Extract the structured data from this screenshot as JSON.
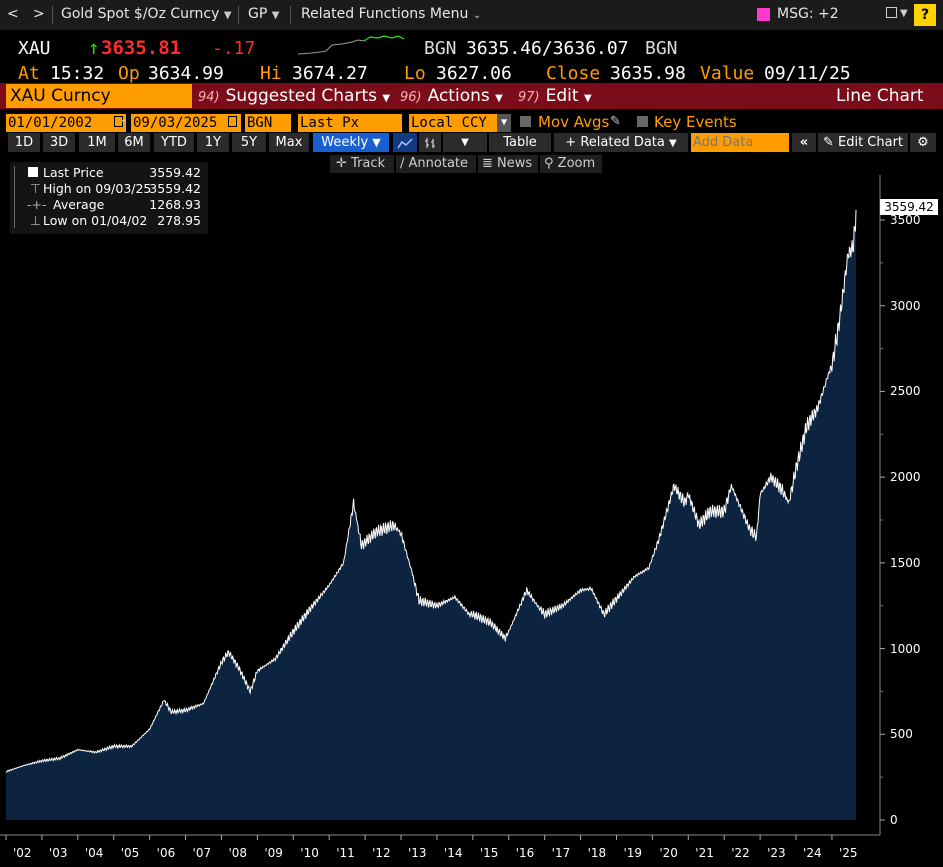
{
  "topbar": {
    "back_glyph": "<",
    "forward_glyph": ">",
    "security_name": "Gold Spot $/Oz Curncy",
    "function_code": "GP",
    "related_menu": "Related Functions Menu",
    "msg_label": "MSG: +2",
    "help_glyph": "?"
  },
  "quote": {
    "ticker": "XAU",
    "arrow": "↑",
    "last": "3635.81",
    "change": "-.17",
    "bid_src": "BGN",
    "bid_ask": "3635.46/3636.07",
    "ask_src": "BGN",
    "at_label": "At",
    "time": "15:32",
    "op_label": "Op",
    "open": "3634.99",
    "hi_label": "Hi",
    "high": "3674.27",
    "lo_label": "Lo",
    "low": "3627.06",
    "close_label": "Close",
    "close": "3635.98",
    "value_label": "Value",
    "value_date": "09/11/25"
  },
  "fnbar": {
    "security": "XAU Curncy",
    "suggested_num": "94)",
    "suggested": "Suggested Charts",
    "actions_num": "96)",
    "actions": "Actions",
    "edit_num": "97)",
    "edit": "Edit",
    "chart_type": "Line Chart"
  },
  "settings": {
    "start_date": "01/01/2002",
    "dash": "-",
    "end_date": "09/03/2025",
    "source": "BGN",
    "field": "Last Px",
    "currency": "Local CCY",
    "mov_avgs": "Mov Avgs",
    "key_events": "Key Events"
  },
  "periods": [
    "1D",
    "3D",
    "1M",
    "6M",
    "YTD",
    "1Y",
    "5Y",
    "Max"
  ],
  "frequency": "Weekly",
  "toolbar": {
    "table": "Table",
    "related_data": "Related Data",
    "add_data_placeholder": "Add Data",
    "edit_chart": "Edit Chart",
    "track": "Track",
    "annotate": "Annotate",
    "news": "News",
    "zoom": "Zoom"
  },
  "legend": {
    "last_label": "Last Price",
    "last_value": "3559.42",
    "high_label": "High on 09/03/25",
    "high_value": "3559.42",
    "avg_label": "Average",
    "avg_value": "1268.93",
    "low_label": "Low on 01/04/02",
    "low_value": "278.95"
  },
  "colors": {
    "amber": "#ff9d00",
    "up_green": "#22e000",
    "down_red": "#ff2a2a",
    "fn_bar": "#7b0d1a",
    "area_fill": "#0d2440",
    "line": "#ffffff"
  },
  "chart_data": {
    "type": "area",
    "title": "Gold Spot $/Oz Curncy",
    "frequency": "Weekly",
    "xlabel": "",
    "ylabel": "",
    "ylim": [
      0,
      3800
    ],
    "y_ticks": [
      0,
      500,
      1000,
      1500,
      2000,
      2500,
      3000,
      3500
    ],
    "x_tick_labels": [
      "'02",
      "'03",
      "'04",
      "'05",
      "'06",
      "'07",
      "'08",
      "'09",
      "'10",
      "'11",
      "'12",
      "'13",
      "'14",
      "'15",
      "'16",
      "'17",
      "'18",
      "'19",
      "'20",
      "'21",
      "'22",
      "'23",
      "'24",
      "'25"
    ],
    "last_value_label": "3559.42",
    "series": [
      {
        "name": "Last Price",
        "x": [
          2002.0,
          2002.5,
          2003.0,
          2003.5,
          2004.0,
          2004.5,
          2005.0,
          2005.5,
          2006.0,
          2006.4,
          2006.6,
          2007.0,
          2007.5,
          2008.0,
          2008.2,
          2008.5,
          2008.8,
          2009.0,
          2009.5,
          2010.0,
          2010.5,
          2011.0,
          2011.4,
          2011.68,
          2011.9,
          2012.3,
          2012.8,
          2013.0,
          2013.3,
          2013.5,
          2014.0,
          2014.5,
          2014.9,
          2015.0,
          2015.5,
          2015.9,
          2016.0,
          2016.5,
          2016.8,
          2017.0,
          2017.5,
          2018.0,
          2018.3,
          2018.65,
          2019.0,
          2019.5,
          2019.9,
          2020.2,
          2020.6,
          2020.9,
          2021.0,
          2021.3,
          2021.6,
          2022.0,
          2022.2,
          2022.7,
          2022.9,
          2023.0,
          2023.3,
          2023.6,
          2023.8,
          2024.0,
          2024.3,
          2024.6,
          2024.9,
          2025.0,
          2025.2,
          2025.45,
          2025.6,
          2025.67
        ],
        "values": [
          282,
          318,
          345,
          360,
          410,
          395,
          430,
          430,
          530,
          700,
          630,
          640,
          680,
          920,
          980,
          880,
          750,
          870,
          940,
          1100,
          1240,
          1370,
          1500,
          1850,
          1600,
          1680,
          1720,
          1670,
          1450,
          1280,
          1250,
          1300,
          1200,
          1200,
          1150,
          1060,
          1100,
          1340,
          1250,
          1200,
          1250,
          1340,
          1350,
          1200,
          1290,
          1420,
          1470,
          1650,
          1950,
          1850,
          1900,
          1720,
          1800,
          1800,
          1950,
          1700,
          1650,
          1900,
          2000,
          1930,
          1850,
          2050,
          2300,
          2400,
          2600,
          2650,
          2900,
          3300,
          3350,
          3559
        ]
      }
    ]
  }
}
